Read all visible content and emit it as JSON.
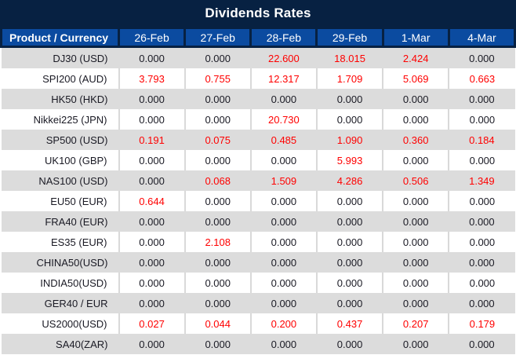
{
  "title": "Dividends Rates",
  "colors": {
    "title_bar_navy": "#072142",
    "header_blue": "#0b4ba0",
    "row_gray": "#dcdcdc",
    "row_white": "#ffffff",
    "value_dark": "#1a1a24",
    "value_red": "#ff0000",
    "divider_gray": "#d9d9d9"
  },
  "table": {
    "product_header": "Product / Currency",
    "date_headers": [
      "26-Feb",
      "27-Feb",
      "28-Feb",
      "29-Feb",
      "1-Mar",
      "4-Mar"
    ],
    "rows": [
      {
        "product": "DJ30 (USD)",
        "values": [
          "0.000",
          "0.000",
          "22.600",
          "18.015",
          "2.424",
          "0.000"
        ]
      },
      {
        "product": "SPI200 (AUD)",
        "values": [
          "3.793",
          "0.755",
          "12.317",
          "1.709",
          "5.069",
          "0.663"
        ]
      },
      {
        "product": "HK50 (HKD)",
        "values": [
          "0.000",
          "0.000",
          "0.000",
          "0.000",
          "0.000",
          "0.000"
        ]
      },
      {
        "product": "Nikkei225 (JPN)",
        "values": [
          "0.000",
          "0.000",
          "20.730",
          "0.000",
          "0.000",
          "0.000"
        ]
      },
      {
        "product": "SP500 (USD)",
        "values": [
          "0.191",
          "0.075",
          "0.485",
          "1.090",
          "0.360",
          "0.184"
        ]
      },
      {
        "product": "UK100 (GBP)",
        "values": [
          "0.000",
          "0.000",
          "0.000",
          "5.993",
          "0.000",
          "0.000"
        ]
      },
      {
        "product": "NAS100 (USD)",
        "values": [
          "0.000",
          "0.068",
          "1.509",
          "4.286",
          "0.506",
          "1.349"
        ]
      },
      {
        "product": "EU50 (EUR)",
        "values": [
          "0.644",
          "0.000",
          "0.000",
          "0.000",
          "0.000",
          "0.000"
        ]
      },
      {
        "product": "FRA40 (EUR)",
        "values": [
          "0.000",
          "0.000",
          "0.000",
          "0.000",
          "0.000",
          "0.000"
        ]
      },
      {
        "product": "ES35 (EUR)",
        "values": [
          "0.000",
          "2.108",
          "0.000",
          "0.000",
          "0.000",
          "0.000"
        ]
      },
      {
        "product": "CHINA50(USD)",
        "values": [
          "0.000",
          "0.000",
          "0.000",
          "0.000",
          "0.000",
          "0.000"
        ]
      },
      {
        "product": "INDIA50(USD)",
        "values": [
          "0.000",
          "0.000",
          "0.000",
          "0.000",
          "0.000",
          "0.000"
        ]
      },
      {
        "product": "GER40 / EUR",
        "values": [
          "0.000",
          "0.000",
          "0.000",
          "0.000",
          "0.000",
          "0.000"
        ]
      },
      {
        "product": "US2000(USD)",
        "values": [
          "0.027",
          "0.044",
          "0.200",
          "0.437",
          "0.207",
          "0.179"
        ]
      },
      {
        "product": "SA40(ZAR)",
        "values": [
          "0.000",
          "0.000",
          "0.000",
          "0.000",
          "0.000",
          "0.000"
        ]
      }
    ]
  }
}
